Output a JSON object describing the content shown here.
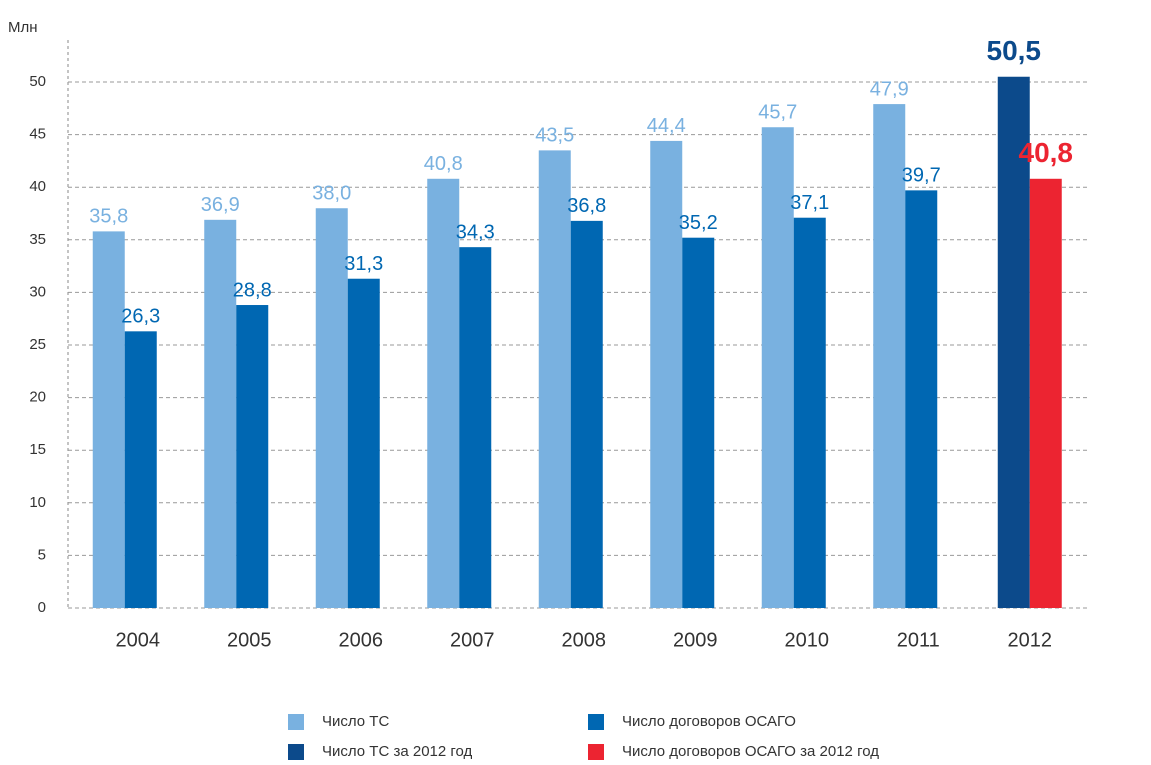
{
  "chart_data": {
    "type": "bar",
    "y_label": "Млн",
    "categories": [
      "2004",
      "2005",
      "2006",
      "2007",
      "2008",
      "2009",
      "2010",
      "2011",
      "2012"
    ],
    "series": [
      {
        "name": "Число ТС",
        "color": "#79b1e0",
        "values": [
          35.8,
          36.9,
          38.0,
          40.8,
          43.5,
          44.4,
          45.7,
          47.9,
          null
        ],
        "value_labels": [
          "35,8",
          "36,9",
          "38,0",
          "40,8",
          "43,5",
          "44,4",
          "45,7",
          "47,9",
          null
        ]
      },
      {
        "name": "Число договоров ОСАГО",
        "color": "#0067b2",
        "values": [
          26.3,
          28.8,
          31.3,
          34.3,
          36.8,
          35.2,
          37.1,
          39.7,
          null
        ],
        "value_labels": [
          "26,3",
          "28,8",
          "31,3",
          "34,3",
          "36,8",
          "35,2",
          "37,1",
          "39,7",
          null
        ]
      },
      {
        "name": "Число ТС за 2012 год",
        "color": "#0c4a8b",
        "values": [
          null,
          null,
          null,
          null,
          null,
          null,
          null,
          null,
          50.5
        ],
        "value_labels": [
          null,
          null,
          null,
          null,
          null,
          null,
          null,
          null,
          "50,5"
        ]
      },
      {
        "name": "Число договоров ОСАГО за 2012 год",
        "color": "#ec2431",
        "values": [
          null,
          null,
          null,
          null,
          null,
          null,
          null,
          null,
          40.8
        ],
        "value_labels": [
          null,
          null,
          null,
          null,
          null,
          null,
          null,
          null,
          "40,8"
        ]
      }
    ],
    "ylim": [
      0,
      50
    ],
    "yticks": [
      0,
      5,
      10,
      15,
      20,
      25,
      30,
      35,
      40,
      45,
      50
    ],
    "grid": true
  }
}
